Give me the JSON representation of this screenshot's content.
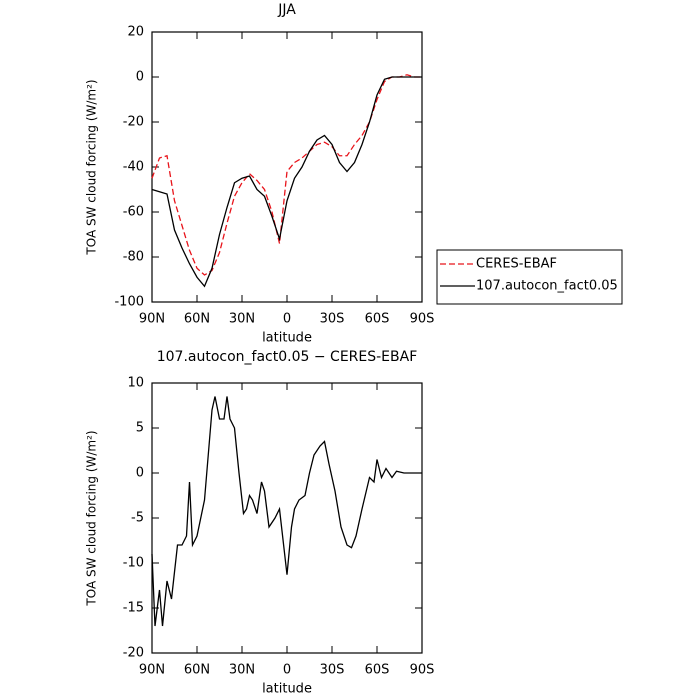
{
  "chart_data": [
    {
      "type": "line",
      "title": "JJA",
      "xlabel": "latitude",
      "ylabel": "TOA SW cloud forcing (W/m²)",
      "x": [
        90,
        85,
        80,
        75,
        70,
        65,
        60,
        55,
        50,
        45,
        40,
        35,
        30,
        25,
        20,
        15,
        10,
        5,
        0,
        -5,
        -10,
        -15,
        -20,
        -25,
        -30,
        -35,
        -40,
        -45,
        -50,
        -55,
        -60,
        -65,
        -70,
        -75,
        -80,
        -85,
        -90
      ],
      "series": [
        {
          "name": "CERES-EBAF",
          "color": "#e8141b",
          "linestyle": "dashed",
          "values": [
            -45,
            -36,
            -35,
            -55,
            -66,
            -77,
            -85,
            -88,
            -86,
            -78,
            -65,
            -53,
            -47,
            -43,
            -46,
            -50,
            -60,
            -74,
            -42,
            -38,
            -36,
            -33,
            -30,
            -29,
            -31,
            -35,
            -35,
            -30,
            -26,
            -20,
            -10,
            -2,
            0,
            0,
            1,
            0,
            0
          ]
        },
        {
          "name": "107.autocon_fact0.05",
          "color": "#000000",
          "linestyle": "solid",
          "values": [
            -50,
            -51,
            -52,
            -68,
            -76,
            -83,
            -89,
            -93,
            -85,
            -70,
            -58,
            -47,
            -45,
            -44,
            -50,
            -53,
            -62,
            -72,
            -55,
            -45,
            -40,
            -33,
            -28,
            -26,
            -30,
            -38,
            -42,
            -38,
            -30,
            -20,
            -8,
            -1,
            0,
            0,
            0,
            0,
            0
          ]
        }
      ],
      "xlim": [
        90,
        -90
      ],
      "xticks": [
        {
          "value": 90,
          "label": "90N"
        },
        {
          "value": 60,
          "label": "60N"
        },
        {
          "value": 30,
          "label": "30N"
        },
        0,
        {
          "value": -30,
          "label": "30S"
        },
        {
          "value": -60,
          "label": "60S"
        },
        {
          "value": -90,
          "label": "90S"
        }
      ],
      "ylim": [
        -100,
        20
      ],
      "yticks": [
        -100,
        -80,
        -60,
        -40,
        -20,
        0,
        20
      ],
      "legend": "right"
    },
    {
      "type": "line",
      "title": "107.autocon_fact0.05 − CERES-EBAF",
      "xlabel": "latitude",
      "ylabel": "TOA SW cloud forcing (W/m²)",
      "x": [
        90,
        88,
        85,
        83,
        80,
        77,
        75,
        73,
        70,
        67,
        65,
        63,
        60,
        55,
        52,
        50,
        48,
        45,
        42,
        40,
        38,
        35,
        32,
        29,
        27,
        25,
        23,
        20,
        17,
        15,
        12,
        8,
        5,
        0,
        -3,
        -5,
        -8,
        -12,
        -15,
        -18,
        -22,
        -25,
        -28,
        -32,
        -36,
        -40,
        -43,
        -46,
        -50,
        -55,
        -58,
        -60,
        -63,
        -66,
        -70,
        -73,
        -78,
        -90
      ],
      "values": [
        -9,
        -17,
        -13,
        -17,
        -12,
        -14,
        -11,
        -8,
        -8,
        -7,
        -1,
        -8,
        -7,
        -3,
        3,
        7,
        8.5,
        6,
        6,
        8.5,
        6,
        5,
        0,
        -4.5,
        -4,
        -2.5,
        -3,
        -4.5,
        -1,
        -2,
        -6,
        -5,
        -4,
        -11.3,
        -6,
        -4,
        -3,
        -2.5,
        0,
        2,
        3,
        3.5,
        1,
        -2,
        -6,
        -8,
        -8.3,
        -7,
        -4,
        -0.5,
        -1,
        1.5,
        -0.5,
        0.5,
        -0.5,
        0.2,
        0,
        0
      ],
      "color": "#000000",
      "xlim": [
        90,
        -90
      ],
      "xticks": [
        {
          "value": 90,
          "label": "90N"
        },
        {
          "value": 60,
          "label": "60N"
        },
        {
          "value": 30,
          "label": "30N"
        },
        0,
        {
          "value": -30,
          "label": "30S"
        },
        {
          "value": -60,
          "label": "60S"
        },
        {
          "value": -90,
          "label": "90S"
        }
      ],
      "ylim": [
        -20,
        10
      ],
      "yticks": [
        -20,
        -15,
        -10,
        -5,
        0,
        5,
        10
      ]
    }
  ]
}
